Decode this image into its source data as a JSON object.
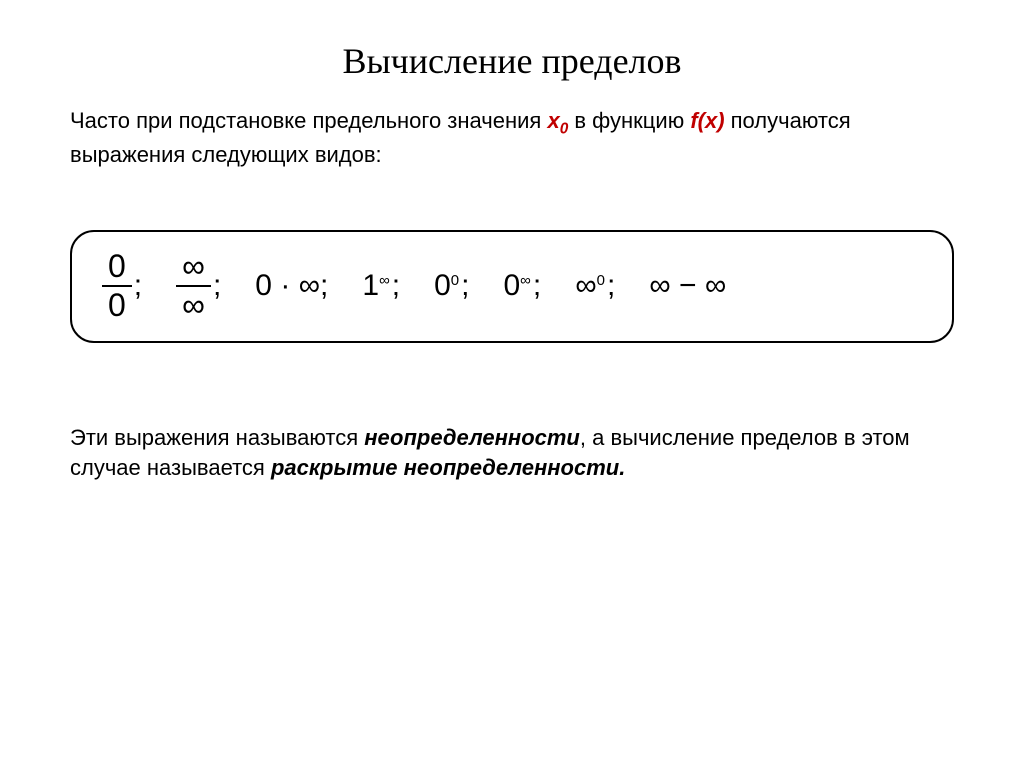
{
  "title": "Вычисление пределов",
  "intro": {
    "part1": "Часто при подстановке предельного значения ",
    "x0_base": "x",
    "x0_sub": "0",
    "part2": " в функцию ",
    "fx": "f(x)",
    "part3": " получаются выражения следующих видов:"
  },
  "formulas": {
    "frac1_num": "0",
    "frac1_den": "0",
    "frac2_num": "∞",
    "frac2_den": "∞",
    "t3": "0 · ∞;",
    "t4_base": "1",
    "t4_sup": "∞",
    "t5_base": "0",
    "t5_sup": "0",
    "t6_base": "0",
    "t6_sup": "∞",
    "t7_base": "∞",
    "t7_sup": "0",
    "t8": "∞ − ∞",
    "semi": ";"
  },
  "outro": {
    "p1": "Эти выражения называются ",
    "w1": "неопределенности",
    "p2": ", а вычисление пределов в этом случае называется ",
    "w2": "раскрытие неопределенности.",
    "end": ""
  },
  "colors": {
    "accent": "#c00000",
    "text": "#000000",
    "background": "#ffffff"
  }
}
